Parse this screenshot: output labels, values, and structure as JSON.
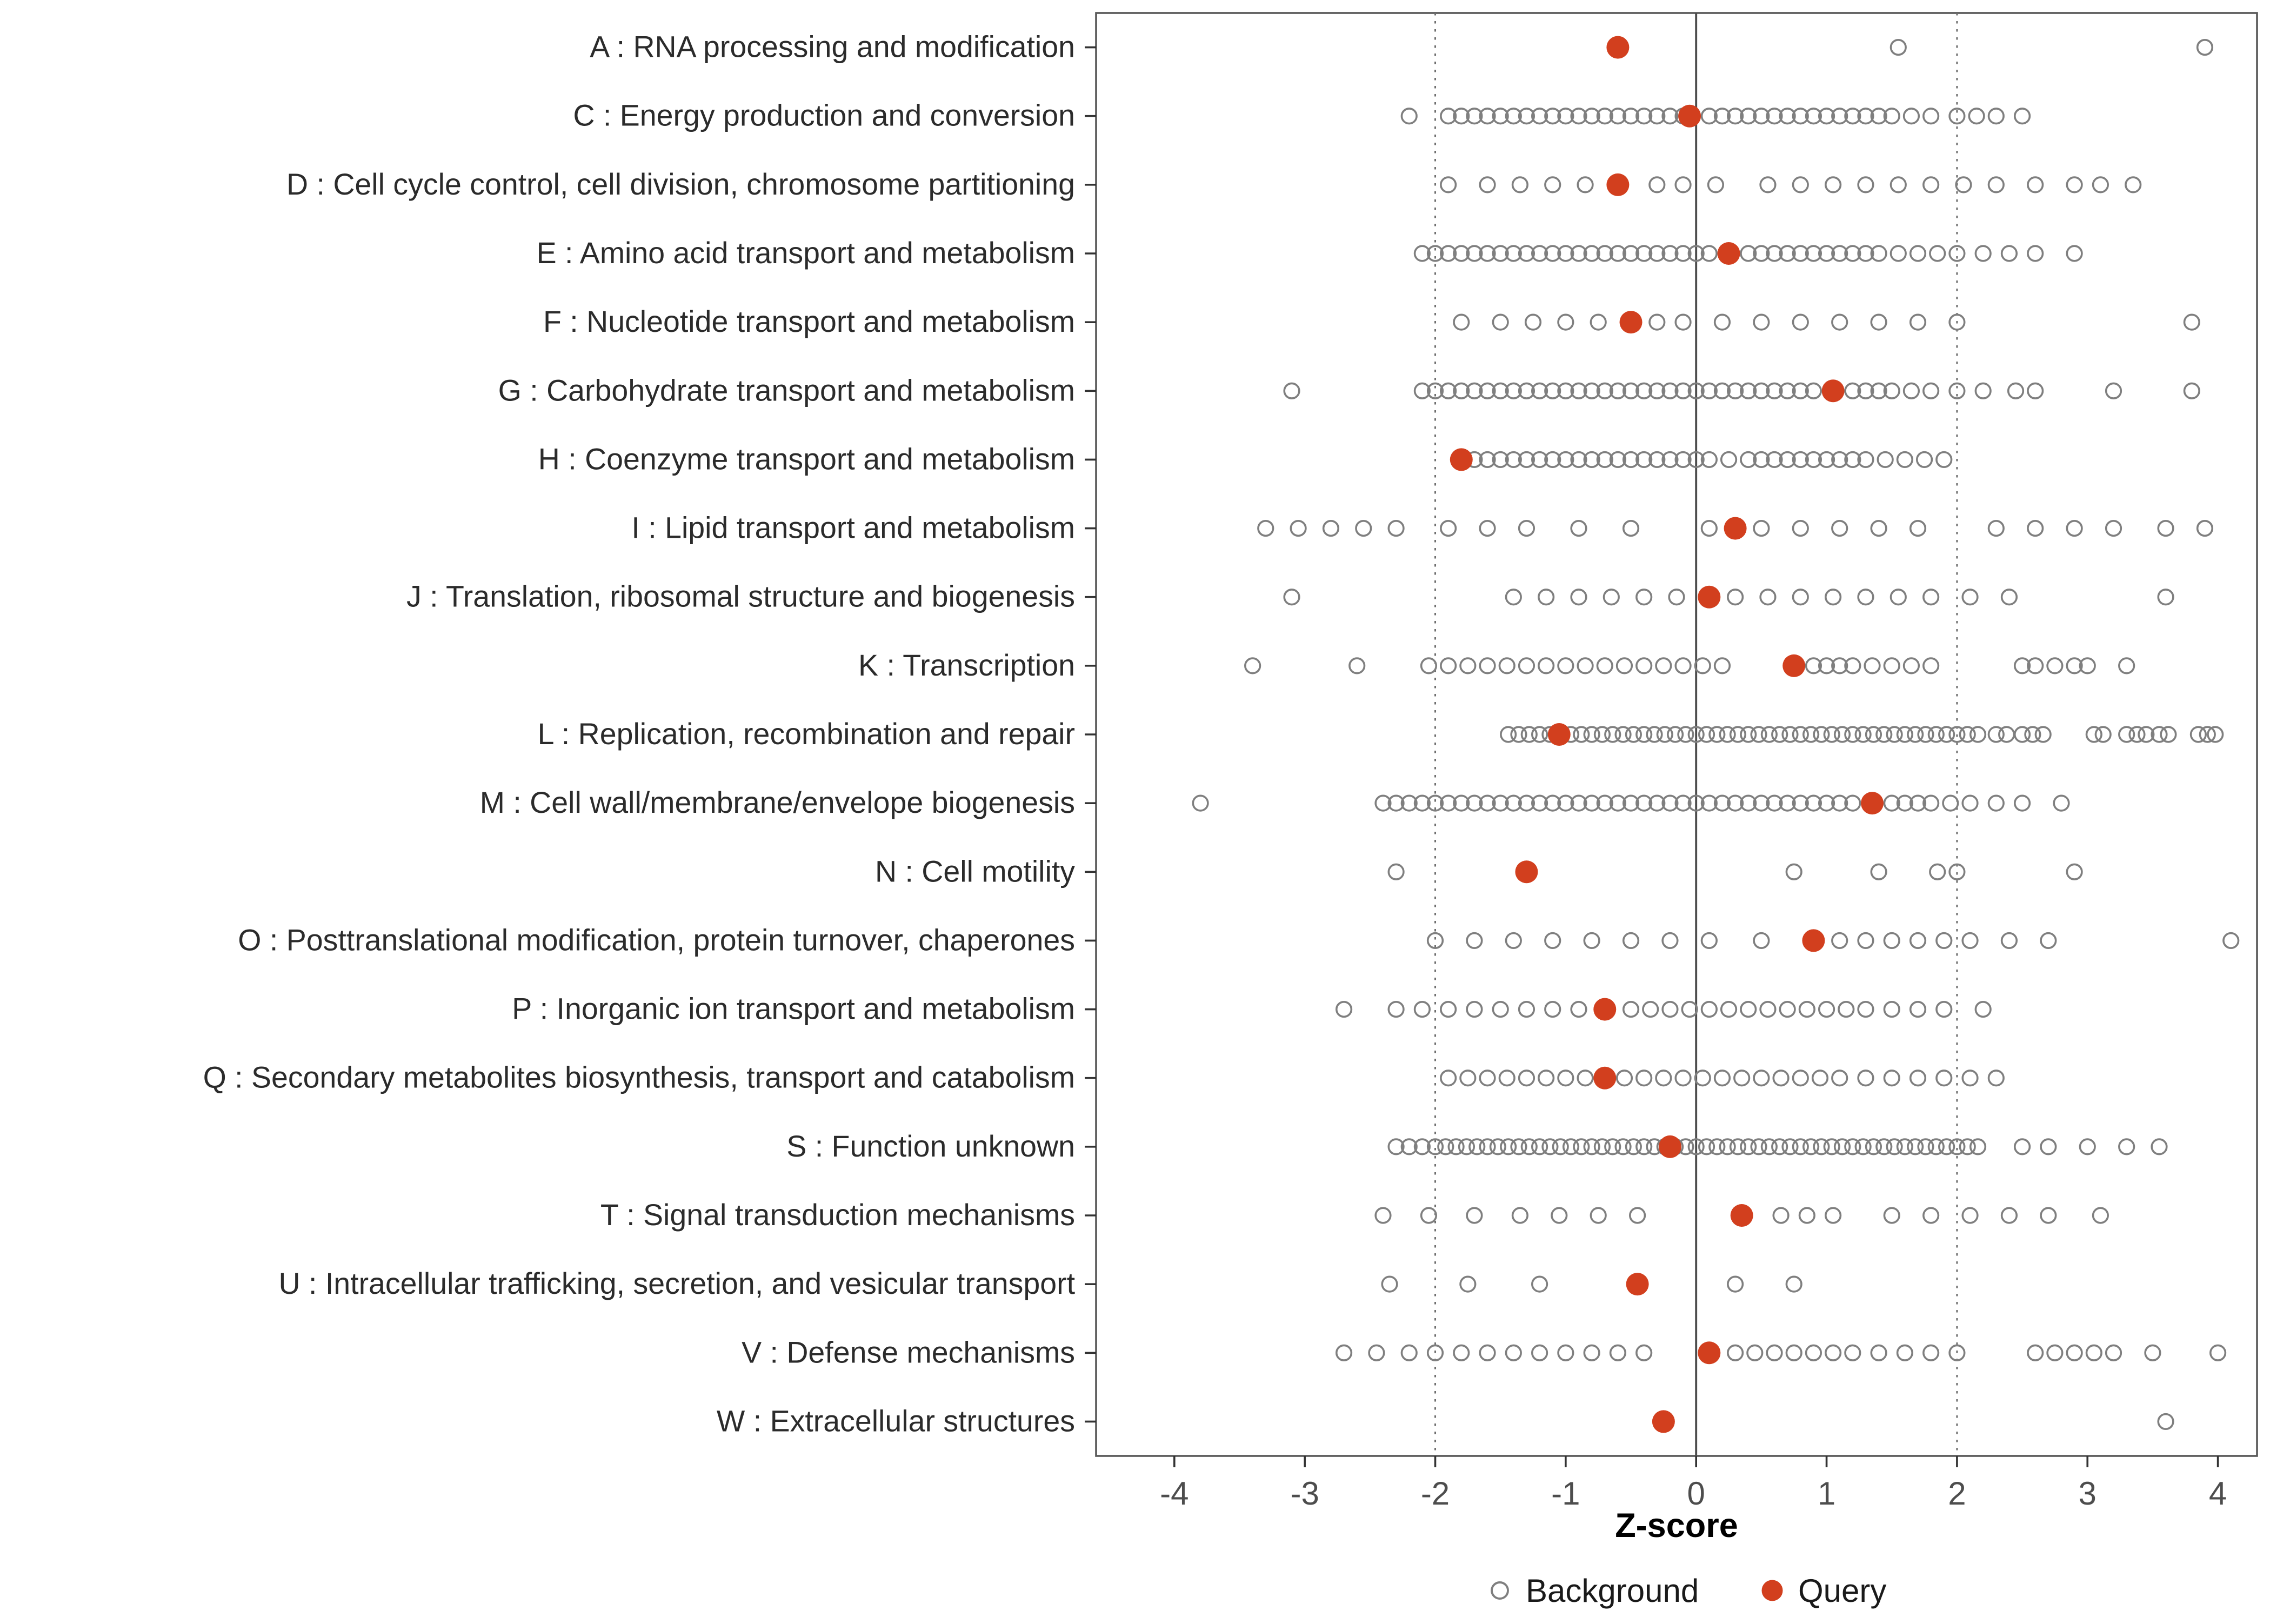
{
  "chart_data": {
    "type": "scatter",
    "title": "",
    "xlabel": "Z-score",
    "xlim": [
      -4.6,
      4.3
    ],
    "x_ticks": [
      -4,
      -3,
      -2,
      -1,
      0,
      1,
      2,
      3,
      4
    ],
    "x_tick_labels": [
      "-4",
      "-3",
      "-2",
      "-1",
      "0",
      "1",
      "2",
      "3",
      "4"
    ],
    "reference_lines": {
      "solid": [
        0
      ],
      "dotted": [
        -2,
        2
      ]
    },
    "grid": false,
    "legend_position": "bottom",
    "legend": [
      {
        "label": "Background",
        "marker": "open-circle",
        "color": "#7f7f7f"
      },
      {
        "label": "Query",
        "marker": "filled-circle",
        "color": "#d23f1e"
      }
    ],
    "colors": {
      "background_stroke": "#7f7f7f",
      "query_fill": "#d23f1e",
      "panel_border": "#5a5a5a",
      "zero_line": "#4d4d4d",
      "dotted_line": "#6e6e6e",
      "axis_text": "#4d4d4d"
    },
    "categories": [
      {
        "label": "A : RNA processing and modification",
        "query": -0.6,
        "background": [
          1.55,
          3.9
        ]
      },
      {
        "label": "C : Energy production and conversion",
        "query": -0.05,
        "background": [
          -2.2,
          -1.9,
          -1.8,
          -1.7,
          -1.6,
          -1.5,
          -1.4,
          -1.3,
          -1.2,
          -1.1,
          -1.0,
          -0.9,
          -0.8,
          -0.7,
          -0.6,
          -0.5,
          -0.4,
          -0.3,
          -0.2,
          -0.1,
          0.1,
          0.2,
          0.3,
          0.4,
          0.5,
          0.6,
          0.7,
          0.8,
          0.9,
          1.0,
          1.1,
          1.2,
          1.3,
          1.4,
          1.5,
          1.65,
          1.8,
          2.0,
          2.15,
          2.3,
          2.5
        ]
      },
      {
        "label": "D : Cell cycle control, cell division, chromosome partitioning",
        "query": -0.6,
        "background": [
          -1.9,
          -1.6,
          -1.35,
          -1.1,
          -0.85,
          -0.3,
          -0.1,
          0.15,
          0.55,
          0.8,
          1.05,
          1.3,
          1.55,
          1.8,
          2.05,
          2.3,
          2.6,
          2.9,
          3.1,
          3.35
        ]
      },
      {
        "label": "E : Amino acid transport and metabolism",
        "query": 0.25,
        "background": [
          -2.1,
          -2.0,
          -1.9,
          -1.8,
          -1.7,
          -1.6,
          -1.5,
          -1.4,
          -1.3,
          -1.2,
          -1.1,
          -1.0,
          -0.9,
          -0.8,
          -0.7,
          -0.6,
          -0.5,
          -0.4,
          -0.3,
          -0.2,
          -0.1,
          0.0,
          0.1,
          0.4,
          0.5,
          0.6,
          0.7,
          0.8,
          0.9,
          1.0,
          1.1,
          1.2,
          1.3,
          1.4,
          1.55,
          1.7,
          1.85,
          2.0,
          2.2,
          2.4,
          2.6,
          2.9
        ]
      },
      {
        "label": "F : Nucleotide transport and metabolism",
        "query": -0.5,
        "background": [
          -1.8,
          -1.5,
          -1.25,
          -1.0,
          -0.75,
          -0.3,
          -0.1,
          0.2,
          0.5,
          0.8,
          1.1,
          1.4,
          1.7,
          2.0,
          3.8
        ]
      },
      {
        "label": "G : Carbohydrate transport and metabolism",
        "query": 1.05,
        "background": [
          -3.1,
          -2.1,
          -2.0,
          -1.9,
          -1.8,
          -1.7,
          -1.6,
          -1.5,
          -1.4,
          -1.3,
          -1.2,
          -1.1,
          -1.0,
          -0.9,
          -0.8,
          -0.7,
          -0.6,
          -0.5,
          -0.4,
          -0.3,
          -0.2,
          -0.1,
          0.0,
          0.1,
          0.2,
          0.3,
          0.4,
          0.5,
          0.6,
          0.7,
          0.8,
          0.9,
          1.2,
          1.3,
          1.4,
          1.5,
          1.65,
          1.8,
          2.0,
          2.2,
          2.45,
          2.6,
          3.2,
          3.8
        ]
      },
      {
        "label": "H : Coenzyme transport and metabolism",
        "query": -1.8,
        "background": [
          -1.7,
          -1.6,
          -1.5,
          -1.4,
          -1.3,
          -1.2,
          -1.1,
          -1.0,
          -0.9,
          -0.8,
          -0.7,
          -0.6,
          -0.5,
          -0.4,
          -0.3,
          -0.2,
          -0.1,
          0.0,
          0.1,
          0.25,
          0.4,
          0.5,
          0.6,
          0.7,
          0.8,
          0.9,
          1.0,
          1.1,
          1.2,
          1.3,
          1.45,
          1.6,
          1.75,
          1.9
        ]
      },
      {
        "label": "I : Lipid transport and metabolism",
        "query": 0.3,
        "background": [
          -3.3,
          -3.05,
          -2.8,
          -2.55,
          -2.3,
          -1.9,
          -1.6,
          -1.3,
          -0.9,
          -0.5,
          0.1,
          0.5,
          0.8,
          1.1,
          1.4,
          1.7,
          2.3,
          2.6,
          2.9,
          3.2,
          3.6,
          3.9
        ]
      },
      {
        "label": "J : Translation, ribosomal structure and biogenesis",
        "query": 0.1,
        "background": [
          -3.1,
          -1.4,
          -1.15,
          -0.9,
          -0.65,
          -0.4,
          -0.15,
          0.3,
          0.55,
          0.8,
          1.05,
          1.3,
          1.55,
          1.8,
          2.1,
          2.4,
          3.6
        ]
      },
      {
        "label": "K : Transcription",
        "query": 0.75,
        "background": [
          -3.4,
          -2.6,
          -2.05,
          -1.9,
          -1.75,
          -1.6,
          -1.45,
          -1.3,
          -1.15,
          -1.0,
          -0.85,
          -0.7,
          -0.55,
          -0.4,
          -0.25,
          -0.1,
          0.05,
          0.2,
          0.9,
          1.0,
          1.1,
          1.2,
          1.35,
          1.5,
          1.65,
          1.8,
          2.5,
          2.6,
          2.75,
          2.9,
          3.0,
          3.3
        ]
      },
      {
        "label": "L : Replication, recombination and repair",
        "query": -1.05,
        "background": [
          -1.44,
          -1.36,
          -1.28,
          -1.2,
          -1.12,
          -1.04,
          -0.96,
          -0.88,
          -0.8,
          -0.72,
          -0.64,
          -0.56,
          -0.48,
          -0.4,
          -0.32,
          -0.24,
          -0.16,
          -0.08,
          0.0,
          0.08,
          0.16,
          0.24,
          0.32,
          0.4,
          0.48,
          0.56,
          0.64,
          0.72,
          0.8,
          0.88,
          0.96,
          1.04,
          1.12,
          1.2,
          1.28,
          1.36,
          1.44,
          1.52,
          1.6,
          1.68,
          1.76,
          1.84,
          1.92,
          2.0,
          2.08,
          2.16,
          2.3,
          2.38,
          2.5,
          2.58,
          2.66,
          3.05,
          3.12,
          3.3,
          3.38,
          3.45,
          3.55,
          3.62,
          3.85,
          3.92,
          3.98
        ]
      },
      {
        "label": "M : Cell wall/membrane/envelope biogenesis",
        "query": 1.35,
        "background": [
          -3.8,
          -2.4,
          -2.3,
          -2.2,
          -2.1,
          -2.0,
          -1.9,
          -1.8,
          -1.7,
          -1.6,
          -1.5,
          -1.4,
          -1.3,
          -1.2,
          -1.1,
          -1.0,
          -0.9,
          -0.8,
          -0.7,
          -0.6,
          -0.5,
          -0.4,
          -0.3,
          -0.2,
          -0.1,
          0.0,
          0.1,
          0.2,
          0.3,
          0.4,
          0.5,
          0.6,
          0.7,
          0.8,
          0.9,
          1.0,
          1.1,
          1.2,
          1.5,
          1.6,
          1.7,
          1.8,
          1.95,
          2.1,
          2.3,
          2.5,
          2.8
        ]
      },
      {
        "label": "N : Cell motility",
        "query": -1.3,
        "background": [
          -2.3,
          0.75,
          1.4,
          1.85,
          2.0,
          2.9
        ]
      },
      {
        "label": "O : Posttranslational modification, protein turnover, chaperones",
        "query": 0.9,
        "background": [
          -2.0,
          -1.7,
          -1.4,
          -1.1,
          -0.8,
          -0.5,
          -0.2,
          0.1,
          0.5,
          1.1,
          1.3,
          1.5,
          1.7,
          1.9,
          2.1,
          2.4,
          2.7,
          4.1
        ]
      },
      {
        "label": "P : Inorganic ion transport and metabolism",
        "query": -0.7,
        "background": [
          -2.7,
          -2.3,
          -2.1,
          -1.9,
          -1.7,
          -1.5,
          -1.3,
          -1.1,
          -0.9,
          -0.5,
          -0.35,
          -0.2,
          -0.05,
          0.1,
          0.25,
          0.4,
          0.55,
          0.7,
          0.85,
          1.0,
          1.15,
          1.3,
          1.5,
          1.7,
          1.9,
          2.2
        ]
      },
      {
        "label": "Q : Secondary metabolites biosynthesis, transport and catabolism",
        "query": -0.7,
        "background": [
          -1.9,
          -1.75,
          -1.6,
          -1.45,
          -1.3,
          -1.15,
          -1.0,
          -0.85,
          -0.55,
          -0.4,
          -0.25,
          -0.1,
          0.05,
          0.2,
          0.35,
          0.5,
          0.65,
          0.8,
          0.95,
          1.1,
          1.3,
          1.5,
          1.7,
          1.9,
          2.1,
          2.3
        ]
      },
      {
        "label": "S : Function unknown",
        "query": -0.2,
        "background": [
          -2.3,
          -2.2,
          -2.1,
          -2.0,
          -1.92,
          -1.84,
          -1.76,
          -1.68,
          -1.6,
          -1.52,
          -1.44,
          -1.36,
          -1.28,
          -1.2,
          -1.12,
          -1.04,
          -0.96,
          -0.88,
          -0.8,
          -0.72,
          -0.64,
          -0.56,
          -0.48,
          -0.4,
          -0.32,
          -0.24,
          -0.16,
          -0.08,
          0.0,
          0.08,
          0.16,
          0.24,
          0.32,
          0.4,
          0.48,
          0.56,
          0.64,
          0.72,
          0.8,
          0.88,
          0.96,
          1.04,
          1.12,
          1.2,
          1.28,
          1.36,
          1.44,
          1.52,
          1.6,
          1.68,
          1.76,
          1.84,
          1.92,
          2.0,
          2.08,
          2.16,
          2.5,
          2.7,
          3.0,
          3.3,
          3.55
        ]
      },
      {
        "label": "T : Signal transduction mechanisms",
        "query": 0.35,
        "background": [
          -2.4,
          -2.05,
          -1.7,
          -1.35,
          -1.05,
          -0.75,
          -0.45,
          0.65,
          0.85,
          1.05,
          1.5,
          1.8,
          2.1,
          2.4,
          2.7,
          3.1
        ]
      },
      {
        "label": "U : Intracellular trafficking, secretion, and vesicular transport",
        "query": -0.45,
        "background": [
          -2.35,
          -1.75,
          -1.2,
          0.3,
          0.75
        ]
      },
      {
        "label": "V : Defense mechanisms",
        "query": 0.1,
        "background": [
          -2.7,
          -2.45,
          -2.2,
          -2.0,
          -1.8,
          -1.6,
          -1.4,
          -1.2,
          -1.0,
          -0.8,
          -0.6,
          -0.4,
          0.3,
          0.45,
          0.6,
          0.75,
          0.9,
          1.05,
          1.2,
          1.4,
          1.6,
          1.8,
          2.0,
          2.6,
          2.75,
          2.9,
          3.05,
          3.2,
          3.5,
          4.0
        ]
      },
      {
        "label": "W : Extracellular structures",
        "query": -0.25,
        "background": [
          3.6
        ]
      }
    ]
  }
}
